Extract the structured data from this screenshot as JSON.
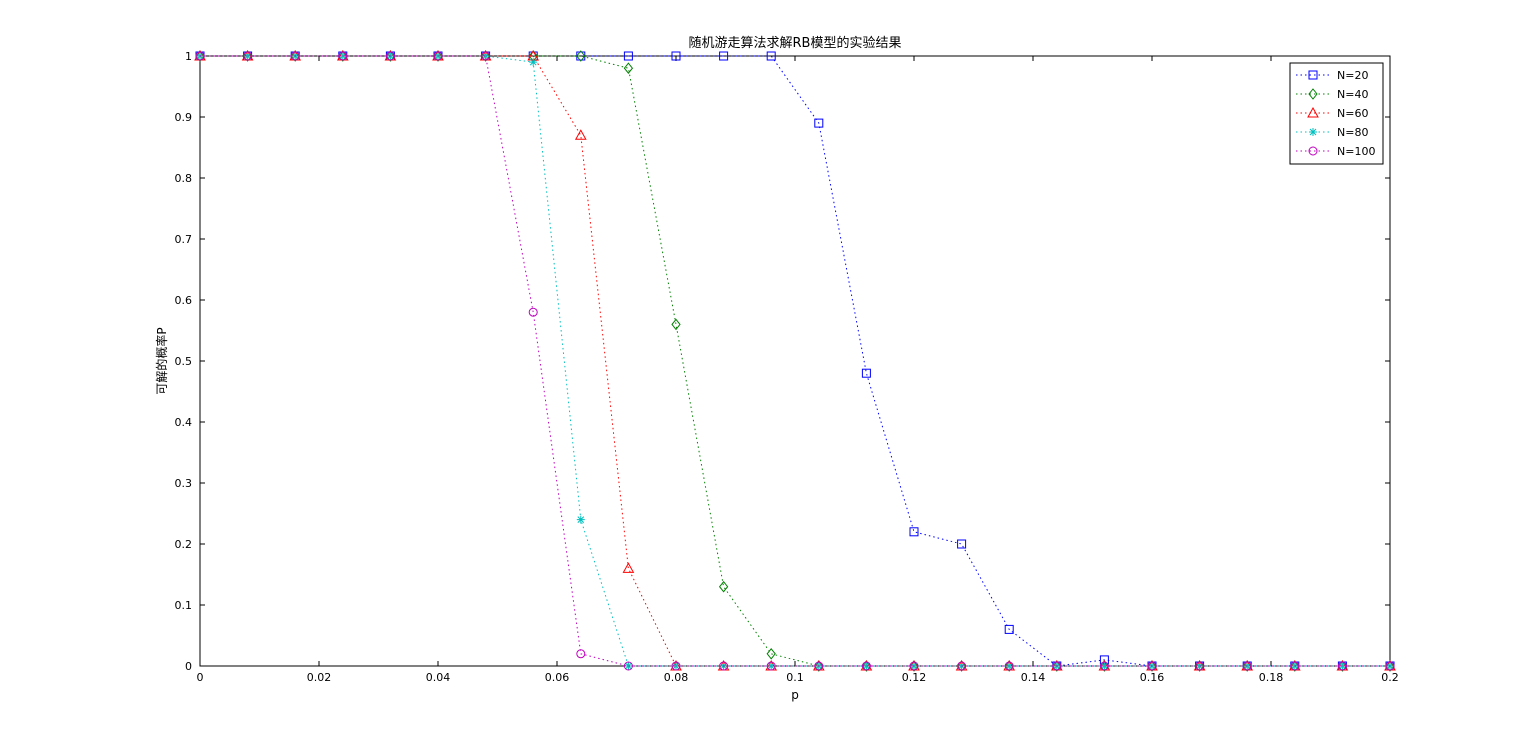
{
  "chart_data": {
    "type": "line",
    "title": "随机游走算法求解RB模型的实验结果",
    "xlabel": "p",
    "ylabel": "可解的概率P",
    "xlim": [
      0,
      0.2
    ],
    "ylim": [
      0,
      1
    ],
    "xticks": [
      "0",
      "0.02",
      "0.04",
      "0.06",
      "0.08",
      "0.1",
      "0.12",
      "0.14",
      "0.16",
      "0.18",
      "0.2"
    ],
    "yticks": [
      "0",
      "0.1",
      "0.2",
      "0.3",
      "0.4",
      "0.5",
      "0.6",
      "0.7",
      "0.8",
      "0.9",
      "1"
    ],
    "grid": false,
    "legend_position": "top-right",
    "x": [
      0,
      0.008,
      0.016,
      0.024,
      0.032,
      0.04,
      0.048,
      0.056,
      0.064,
      0.072,
      0.08,
      0.088,
      0.096,
      0.104,
      0.112,
      0.12,
      0.128,
      0.136,
      0.144,
      0.152,
      0.16,
      0.168,
      0.176,
      0.184,
      0.192,
      0.2
    ],
    "series": [
      {
        "name": "N=20",
        "color": "#0000ff",
        "marker": "square",
        "values": [
          1,
          1,
          1,
          1,
          1,
          1,
          1,
          1,
          1,
          1,
          1,
          1,
          1,
          0.89,
          0.48,
          0.22,
          0.2,
          0.06,
          0,
          0.01,
          0,
          0,
          0,
          0,
          0,
          0
        ]
      },
      {
        "name": "N=40",
        "color": "#008000",
        "marker": "diamond",
        "values": [
          1,
          1,
          1,
          1,
          1,
          1,
          1,
          1,
          1,
          0.98,
          0.56,
          0.13,
          0.02,
          0,
          0,
          0,
          0,
          0,
          0,
          0,
          0,
          0,
          0,
          0,
          0,
          0
        ]
      },
      {
        "name": "N=60",
        "color": "#ff0000",
        "marker": "triangle",
        "values": [
          1,
          1,
          1,
          1,
          1,
          1,
          1,
          1,
          0.87,
          0.16,
          0,
          0,
          0,
          0,
          0,
          0,
          0,
          0,
          0,
          0,
          0,
          0,
          0,
          0,
          0,
          0
        ]
      },
      {
        "name": "N=80",
        "color": "#00bfbf",
        "marker": "star",
        "values": [
          1,
          1,
          1,
          1,
          1,
          1,
          1,
          0.99,
          0.24,
          0,
          0,
          0,
          0,
          0,
          0,
          0,
          0,
          0,
          0,
          0,
          0,
          0,
          0,
          0,
          0,
          0
        ]
      },
      {
        "name": "N=100",
        "color": "#bf00bf",
        "marker": "circle",
        "values": [
          1,
          1,
          1,
          1,
          1,
          1,
          1,
          0.58,
          0.02,
          0,
          0,
          0,
          0,
          0,
          0,
          0,
          0,
          0,
          0,
          0,
          0,
          0,
          0,
          0,
          0,
          0
        ]
      }
    ]
  }
}
